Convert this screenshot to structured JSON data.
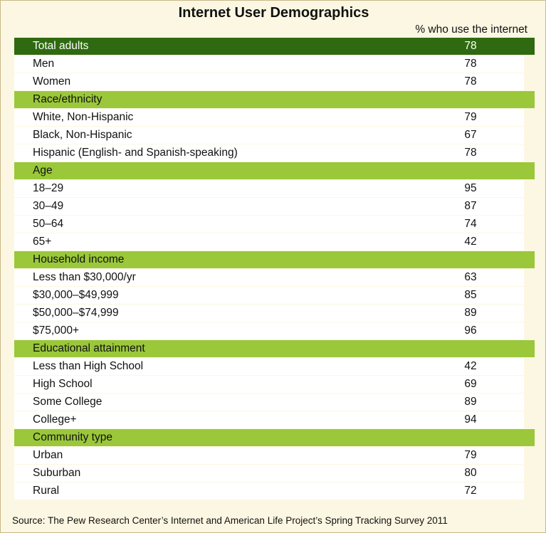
{
  "chart_data": {
    "type": "table",
    "title": "Internet User Demographics",
    "value_header": "% who use the internet",
    "rows": [
      {
        "kind": "total",
        "label": "Total adults",
        "value": 78
      },
      {
        "kind": "item",
        "label": "Men",
        "value": 78
      },
      {
        "kind": "item",
        "label": "Women",
        "value": 78
      },
      {
        "kind": "section",
        "label": "Race/ethnicity"
      },
      {
        "kind": "item",
        "label": "White, Non-Hispanic",
        "value": 79
      },
      {
        "kind": "item",
        "label": "Black, Non-Hispanic",
        "value": 67
      },
      {
        "kind": "item",
        "label": "Hispanic (English- and Spanish-speaking)",
        "value": 78
      },
      {
        "kind": "section",
        "label": "Age"
      },
      {
        "kind": "item",
        "label": "18–29",
        "value": 95
      },
      {
        "kind": "item",
        "label": "30–49",
        "value": 87
      },
      {
        "kind": "item",
        "label": "50–64",
        "value": 74
      },
      {
        "kind": "item",
        "label": "65+",
        "value": 42
      },
      {
        "kind": "section",
        "label": "Household income"
      },
      {
        "kind": "item",
        "label": "Less than $30,000/yr",
        "value": 63
      },
      {
        "kind": "item",
        "label": "$30,000–$49,999",
        "value": 85
      },
      {
        "kind": "item",
        "label": "$50,000–$74,999",
        "value": 89
      },
      {
        "kind": "item",
        "label": "$75,000+",
        "value": 96
      },
      {
        "kind": "section",
        "label": "Educational attainment"
      },
      {
        "kind": "item",
        "label": "Less than High School",
        "value": 42
      },
      {
        "kind": "item",
        "label": "High School",
        "value": 69
      },
      {
        "kind": "item",
        "label": "Some College",
        "value": 89
      },
      {
        "kind": "item",
        "label": "College+",
        "value": 94
      },
      {
        "kind": "section",
        "label": "Community type"
      },
      {
        "kind": "item",
        "label": "Urban",
        "value": 79
      },
      {
        "kind": "item",
        "label": "Suburban",
        "value": 80
      },
      {
        "kind": "item",
        "label": "Rural",
        "value": 72
      }
    ],
    "source": "Source: The Pew Research Center’s Internet and American Life Project’s Spring Tracking Survey 2011"
  },
  "colors": {
    "background": "#fcf7e2",
    "total_row": "#2f6a10",
    "section_row": "#9ac83a",
    "item_row": "#ffffff"
  }
}
